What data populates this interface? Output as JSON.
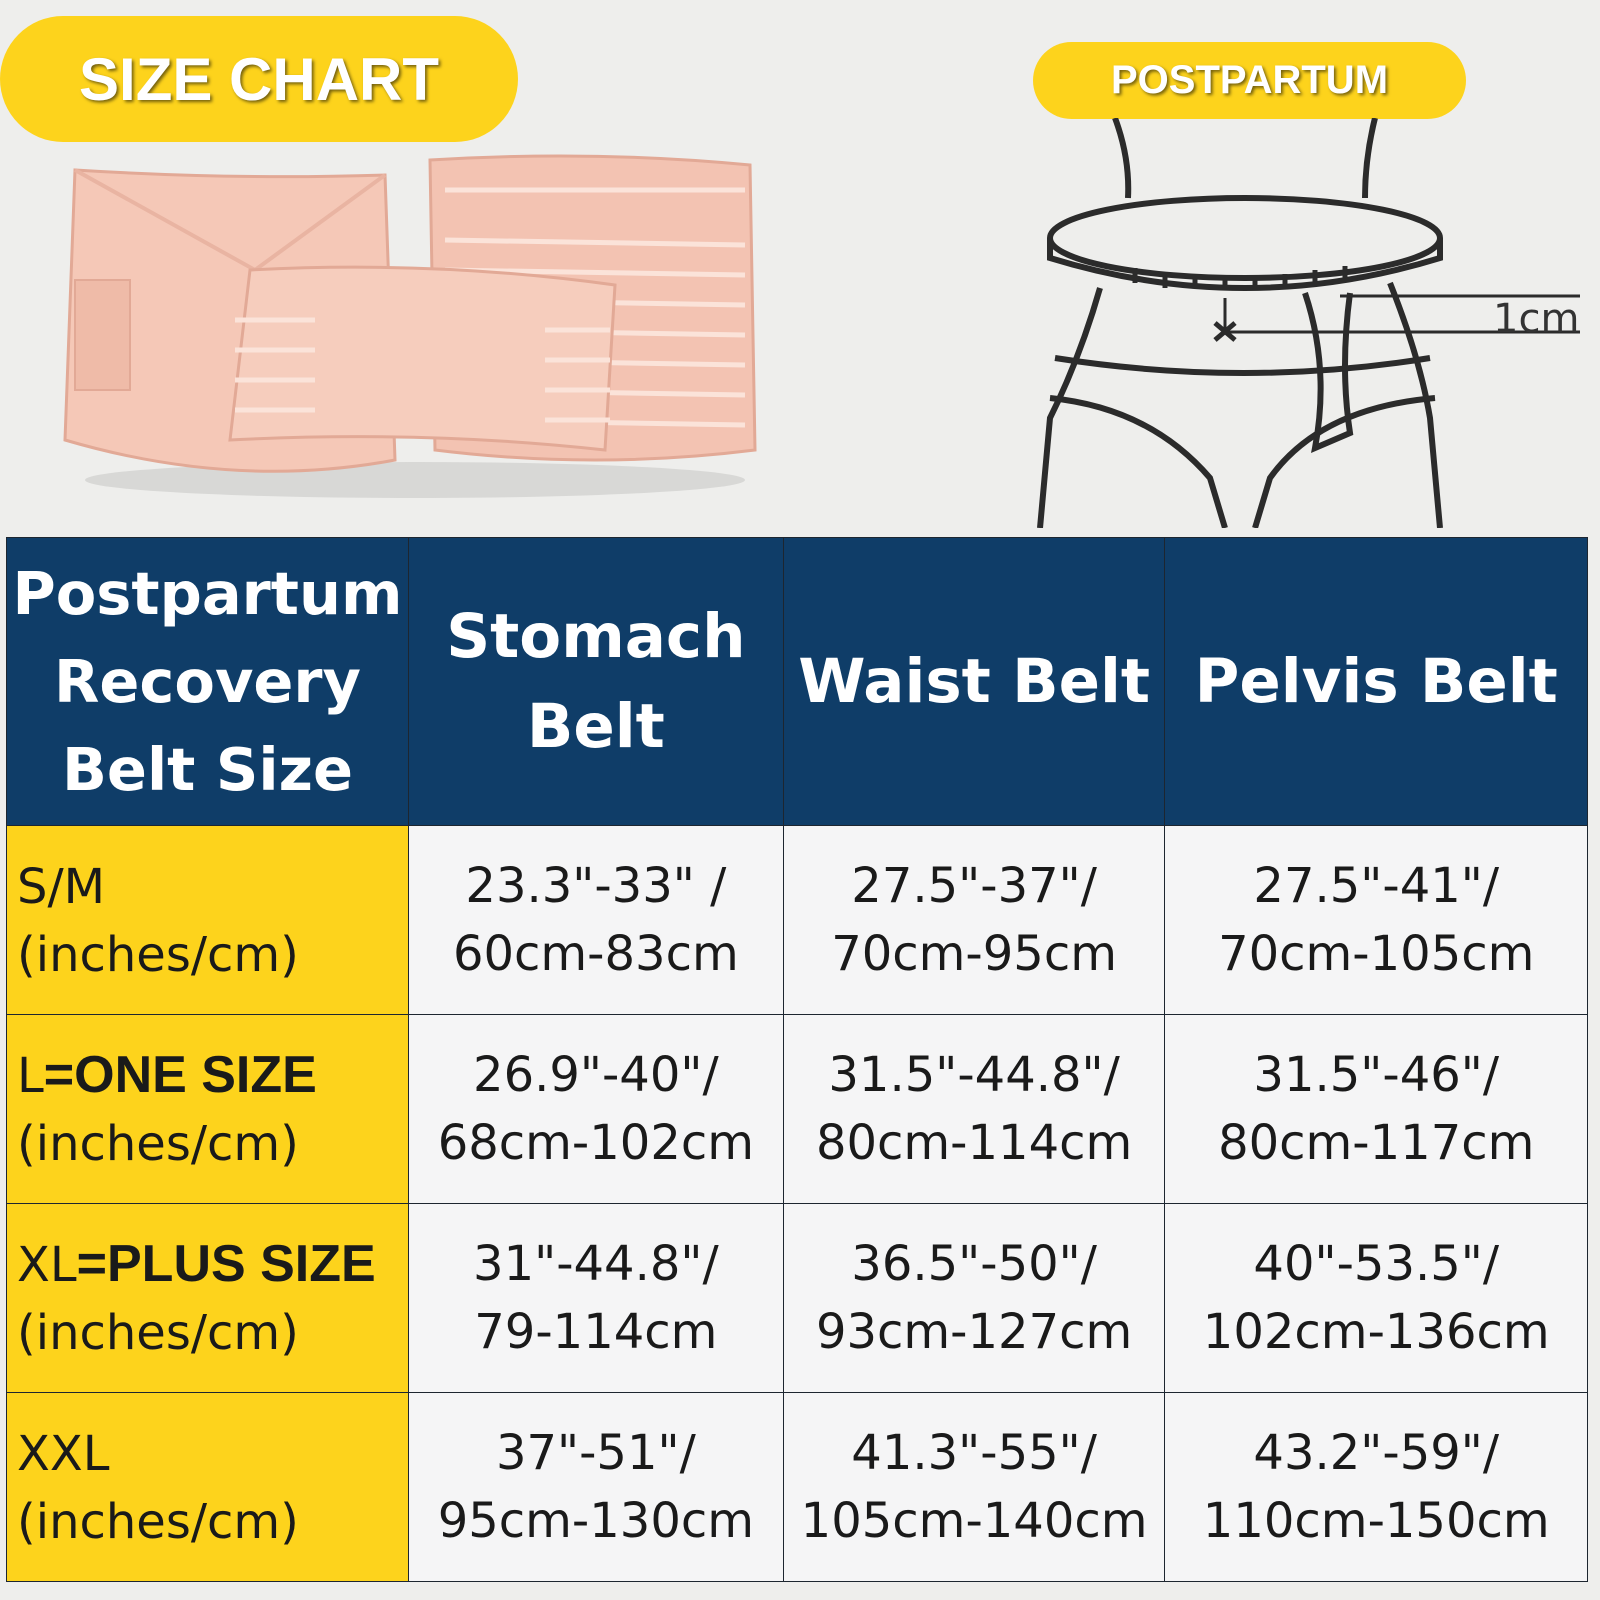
{
  "banner": {
    "title": "SIZE CHART",
    "diagram_label": "POSTPARTUM",
    "measure_label": "1cm"
  },
  "colors": {
    "yellow": "#fdd31c",
    "navy": "#0f3d68",
    "belt_pink": "#f3c3b2"
  },
  "table": {
    "headers": [
      "Postpartum Recovery Belt Size",
      "Stomach Belt",
      "Waist Belt",
      "Pelvis Belt"
    ],
    "rows": [
      {
        "size_prefix": "S/M",
        "size_bold": "",
        "unit": "(inches/cm)",
        "stomach": [
          "23.3\"-33\" /",
          "60cm-83cm"
        ],
        "waist": [
          "27.5\"-37\"/",
          "70cm-95cm"
        ],
        "pelvis": [
          "27.5\"-41\"/",
          "70cm-105cm"
        ]
      },
      {
        "size_prefix": "L",
        "size_bold": "=ONE SIZE",
        "unit": "(inches/cm)",
        "stomach": [
          "26.9\"-40\"/",
          "68cm-102cm"
        ],
        "waist": [
          "31.5\"-44.8\"/",
          "80cm-114cm"
        ],
        "pelvis": [
          "31.5\"-46\"/",
          "80cm-117cm"
        ]
      },
      {
        "size_prefix": "XL",
        "size_bold": "=PLUS SIZE",
        "unit": "(inches/cm)",
        "stomach": [
          "31\"-44.8\"/",
          "79-114cm"
        ],
        "waist": [
          "36.5\"-50\"/",
          "93cm-127cm"
        ],
        "pelvis": [
          "40\"-53.5\"/",
          "102cm-136cm"
        ]
      },
      {
        "size_prefix": "XXL",
        "size_bold": "",
        "unit": "(inches/cm)",
        "stomach": [
          "37\"-51\"/",
          "95cm-130cm"
        ],
        "waist": [
          "41.3\"-55\"/",
          "105cm-140cm"
        ],
        "pelvis": [
          "43.2\"-59\"/",
          "110cm-150cm"
        ]
      }
    ]
  }
}
